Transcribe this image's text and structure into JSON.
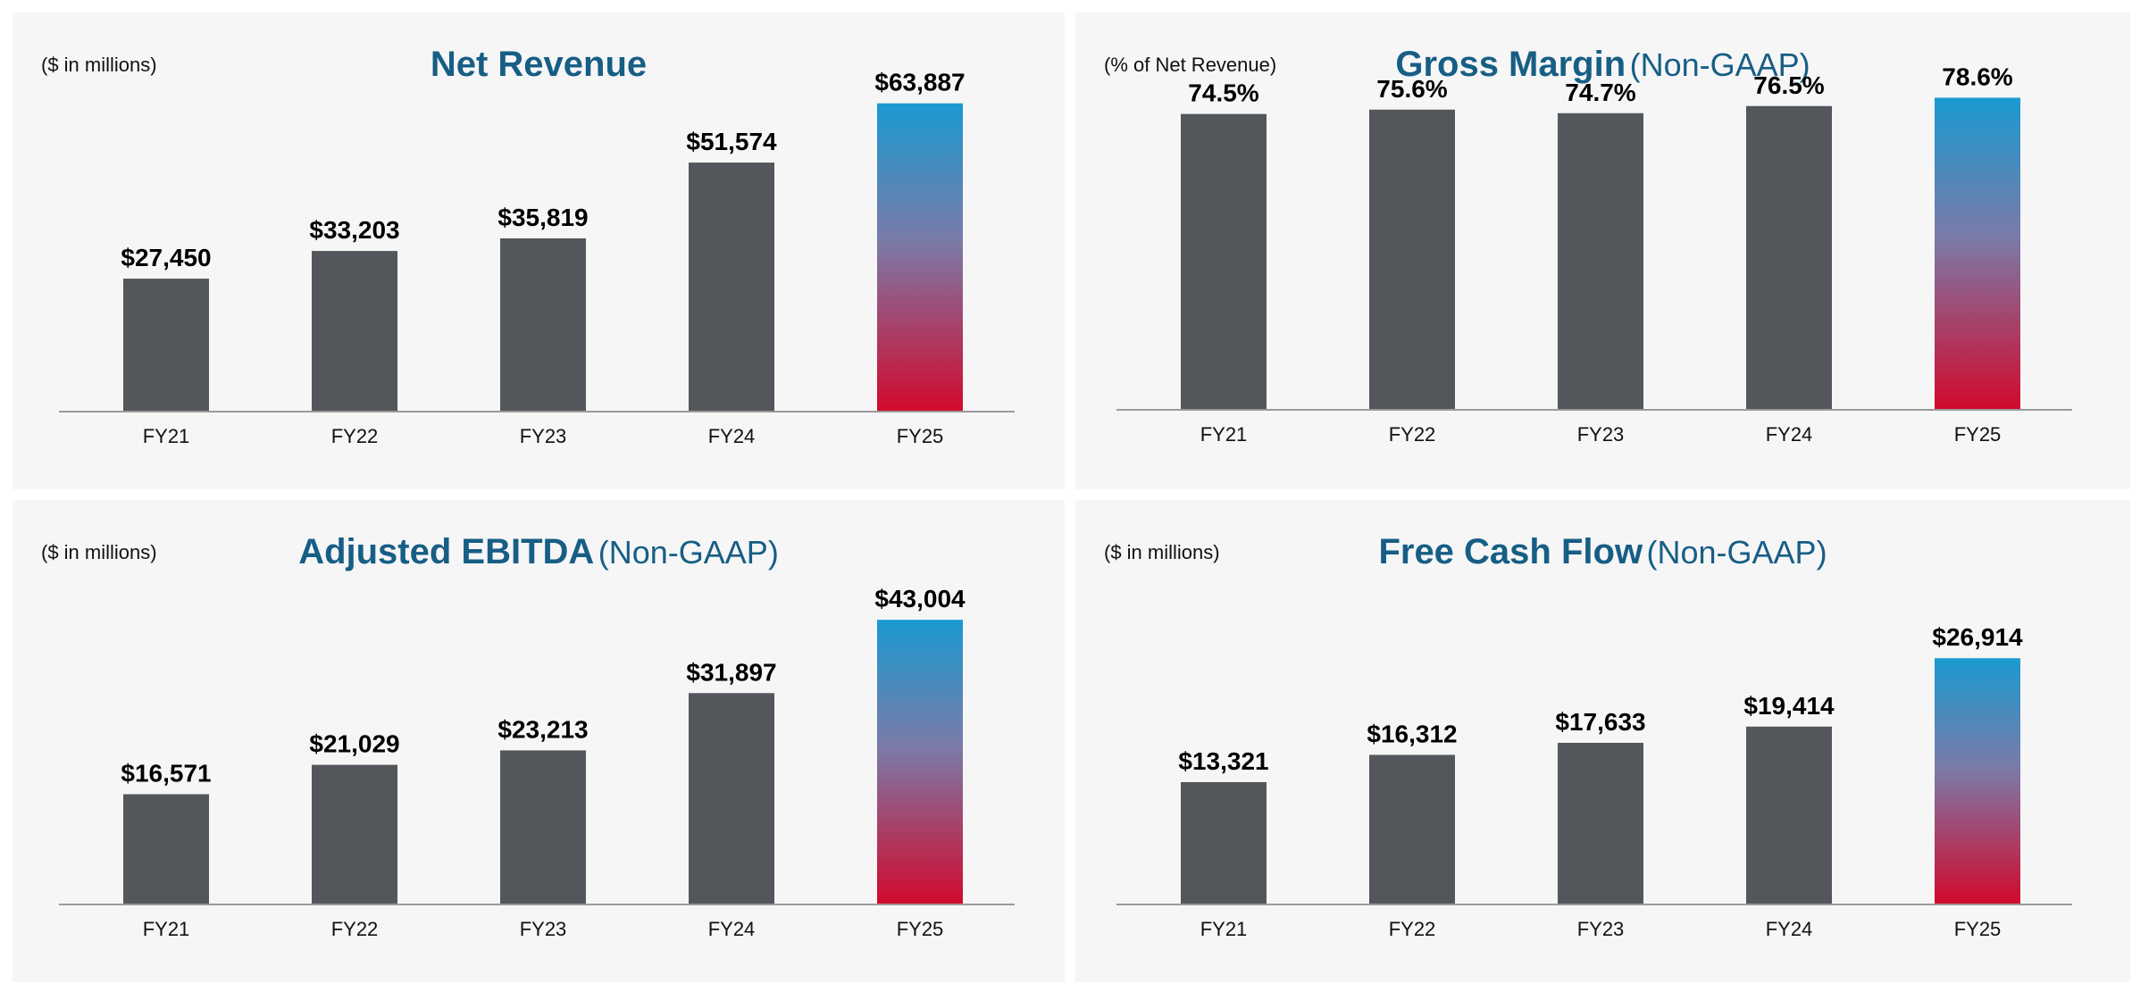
{
  "colors": {
    "bar": "#53565b",
    "gradient_top": "#1a9ad0",
    "gradient_mid": "#7b7aa8",
    "gradient_bottom": "#d10a2d",
    "axis": "#9a9a9a",
    "title": "#175e85",
    "panel_bg": "#f6f6f7"
  },
  "chart_data": [
    {
      "type": "bar",
      "title": "Net Revenue",
      "subtitle": "",
      "unit_note": "($ in millions)",
      "categories": [
        "FY21",
        "FY22",
        "FY23",
        "FY24",
        "FY25"
      ],
      "values": [
        27450,
        33203,
        35819,
        51574,
        63887
      ],
      "data_labels": [
        "$27,450",
        "$33,203",
        "$35,819",
        "$51,574",
        "$63,887"
      ],
      "ylim": [
        0,
        72000
      ],
      "highlight_index": 4,
      "grid": false,
      "legend": "none"
    },
    {
      "type": "bar",
      "title": "Gross Margin",
      "subtitle": "(Non-GAAP)",
      "unit_note": "(% of Net Revenue)",
      "categories": [
        "FY21",
        "FY22",
        "FY23",
        "FY24",
        "FY25"
      ],
      "values": [
        74.5,
        75.6,
        74.7,
        76.5,
        78.6
      ],
      "data_labels": [
        "74.5%",
        "75.6%",
        "74.7%",
        "76.5%",
        "78.6%"
      ],
      "ylim": [
        0,
        87.5
      ],
      "highlight_index": 4,
      "grid": false,
      "legend": "none"
    },
    {
      "type": "bar",
      "title": "Adjusted EBITDA",
      "subtitle": "(Non-GAAP)",
      "unit_note": "($ in millions)",
      "categories": [
        "FY21",
        "FY22",
        "FY23",
        "FY24",
        "FY25"
      ],
      "values": [
        16571,
        21029,
        23213,
        31897,
        43004
      ],
      "data_labels": [
        "$16,571",
        "$21,029",
        "$23,213",
        "$31,897",
        "$43,004"
      ],
      "ylim": [
        0,
        52500
      ],
      "highlight_index": 4,
      "grid": false,
      "legend": "none"
    },
    {
      "type": "bar",
      "title": "Free Cash Flow",
      "subtitle": "(Non-GAAP)",
      "unit_note": "($ in millions)",
      "categories": [
        "FY21",
        "FY22",
        "FY23",
        "FY24",
        "FY25"
      ],
      "values": [
        13321,
        16312,
        17633,
        19414,
        26914
      ],
      "data_labels": [
        "$13,321",
        "$16,312",
        "$17,633",
        "$19,414",
        "$26,914"
      ],
      "ylim": [
        0,
        38000
      ],
      "highlight_index": 4,
      "grid": false,
      "legend": "none"
    }
  ]
}
